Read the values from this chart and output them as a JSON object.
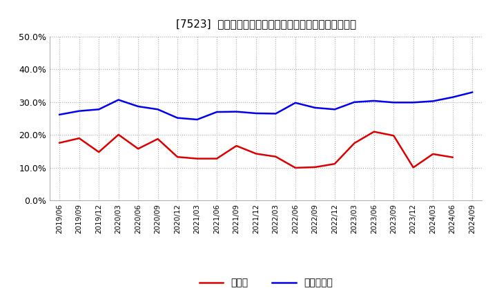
{
  "title": "[7523]  現領金、有利子負債の総資産に対する比率の推移",
  "x_labels": [
    "2019/06",
    "2019/09",
    "2019/12",
    "2020/03",
    "2020/06",
    "2020/09",
    "2020/12",
    "2021/03",
    "2021/06",
    "2021/09",
    "2021/12",
    "2022/03",
    "2022/06",
    "2022/09",
    "2022/12",
    "2023/03",
    "2023/06",
    "2023/09",
    "2023/12",
    "2024/03",
    "2024/06",
    "2024/09"
  ],
  "cash": [
    0.176,
    0.19,
    0.148,
    0.201,
    0.158,
    0.188,
    0.133,
    0.128,
    0.128,
    0.167,
    0.143,
    0.134,
    0.1,
    0.102,
    0.112,
    0.175,
    0.21,
    0.198,
    0.101,
    0.142,
    0.132,
    null
  ],
  "debt": [
    0.262,
    0.273,
    0.278,
    0.307,
    0.287,
    0.278,
    0.252,
    0.247,
    0.27,
    0.271,
    0.266,
    0.265,
    0.298,
    0.283,
    0.278,
    0.3,
    0.304,
    0.299,
    0.299,
    0.303,
    0.315,
    0.33
  ],
  "cash_color": "#dd0000",
  "debt_color": "#0000ee",
  "bg_color": "#ffffff",
  "plot_bg_color": "#ffffff",
  "grid_color": "#aaaaaa",
  "legend_cash": "現領金",
  "legend_debt": "有利子負債",
  "ylim": [
    0.0,
    0.5
  ],
  "yticks": [
    0.0,
    0.1,
    0.2,
    0.3,
    0.4,
    0.5
  ]
}
